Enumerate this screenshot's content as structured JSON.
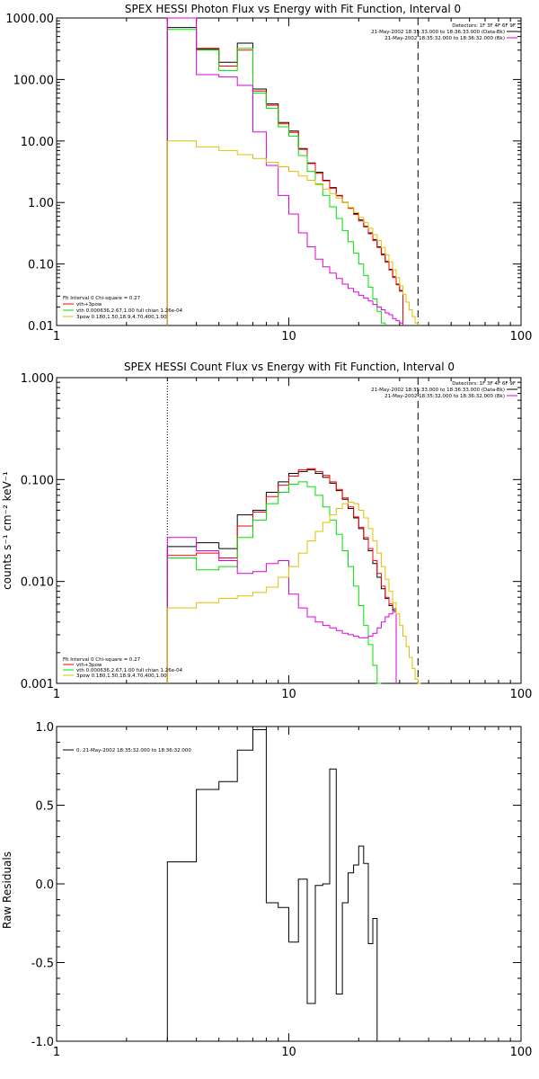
{
  "colors": {
    "black": "#000000",
    "red": "#ff0000",
    "green": "#00e000",
    "magenta": "#e000e0",
    "yellow": "#e0c000"
  },
  "chart_data": [
    {
      "type": "line",
      "title": "SPEX HESSI Photon Flux vs Energy with Fit Function, Interval 0",
      "xlabel": "",
      "ylabel": "",
      "xscale": "log",
      "yscale": "log",
      "xlim": [
        1,
        100
      ],
      "ylim": [
        0.01,
        1000
      ],
      "xticks": [
        {
          "v": 1,
          "label": "1"
        },
        {
          "v": 10,
          "label": "10"
        },
        {
          "v": 100,
          "label": "100"
        }
      ],
      "yticks": [
        {
          "v": 1000,
          "label": "1000.00"
        },
        {
          "v": 100,
          "label": "100.00"
        },
        {
          "v": 10,
          "label": "10.00"
        },
        {
          "v": 1,
          "label": "1.00"
        },
        {
          "v": 0.1,
          "label": "0.10"
        },
        {
          "v": 0.01,
          "label": "0.01"
        }
      ],
      "edges": [
        3,
        4,
        5,
        6,
        7,
        8,
        9,
        10,
        11,
        12,
        13,
        14,
        15,
        16,
        17,
        18,
        19,
        20,
        21,
        22,
        23,
        24,
        25,
        26,
        27,
        28,
        29,
        30,
        31,
        32,
        33,
        34,
        35,
        36,
        37,
        38,
        39,
        40,
        41,
        42,
        43,
        44,
        45
      ],
      "vlines": [
        {
          "x": 3,
          "style": "dotted"
        },
        {
          "x": 36,
          "style": "dashed"
        }
      ],
      "series": [
        {
          "color": "black",
          "values": [
            700,
            310,
            190,
            390,
            70,
            40,
            20,
            14.5,
            7.5,
            4.4,
            3.1,
            2.3,
            1.75,
            1.3,
            1.0,
            0.82,
            0.66,
            0.52,
            0.41,
            0.32,
            0.25,
            0.19,
            0.145,
            0.11,
            0.082,
            0.062,
            0.047,
            0.037,
            null,
            null,
            null,
            null,
            null,
            null,
            null,
            null,
            null,
            null,
            null,
            null,
            null,
            null
          ]
        },
        {
          "color": "red",
          "values": [
            1000,
            320,
            165,
            300,
            65,
            38,
            19,
            13.8,
            7.3,
            4.3,
            3.0,
            2.25,
            1.7,
            1.28,
            0.99,
            0.8,
            0.64,
            0.5,
            0.4,
            0.31,
            0.24,
            0.185,
            0.14,
            0.107,
            0.08,
            0.06,
            0.046,
            0.036,
            null,
            null,
            null,
            null,
            null,
            null,
            null,
            null,
            null,
            null,
            null,
            null,
            null,
            null
          ]
        },
        {
          "color": "green",
          "values": [
            650,
            300,
            140,
            320,
            60,
            34,
            17,
            12,
            5.8,
            3.2,
            2.0,
            1.3,
            0.85,
            0.55,
            0.35,
            0.23,
            0.15,
            0.1,
            0.065,
            0.042,
            0.027,
            0.017,
            0.011,
            null,
            null,
            null,
            null,
            null,
            null,
            null,
            null,
            null,
            null,
            null,
            null,
            null,
            null,
            null,
            null,
            null,
            null,
            null
          ]
        },
        {
          "color": "magenta",
          "values": [
            1000,
            120,
            110,
            80,
            14,
            4.0,
            1.3,
            0.65,
            0.32,
            0.19,
            0.12,
            0.09,
            0.071,
            0.058,
            0.047,
            0.04,
            0.035,
            0.031,
            0.028,
            0.025,
            0.022,
            0.02,
            0.018,
            0.016,
            0.015,
            0.013,
            0.012,
            0.011,
            null,
            null,
            null,
            null,
            null,
            null,
            null,
            null,
            null,
            null,
            null,
            null,
            null,
            null
          ]
        },
        {
          "color": "yellow",
          "values": [
            10,
            8,
            7,
            6,
            5.2,
            4.5,
            3.8,
            3.2,
            2.7,
            2.3,
            1.95,
            1.65,
            1.4,
            1.18,
            0.99,
            0.83,
            0.69,
            0.57,
            0.47,
            0.38,
            0.3,
            0.24,
            0.185,
            0.142,
            0.108,
            0.081,
            0.06,
            0.044,
            0.032,
            0.024,
            0.018,
            0.014,
            0.011,
            null,
            null,
            null,
            null,
            null,
            null,
            null,
            null,
            null
          ]
        }
      ],
      "legend_topright": [
        "Detectors: 1F 3F 4F 6F 9F",
        "21-May-2002 18:35:33.000 to 18:36:33.000 (Data-Bk)",
        "21-May-2002 18:35:32.000 to 18:36:32.000 (Bk)"
      ],
      "legend_topright_colors": [
        "black",
        "black",
        "magenta"
      ],
      "legend_bottomleft": [
        "Fit Interval 0   Chi-square = 0.27",
        "vth+3pow",
        "vth 0.000636,2.67,1.00  full chian 1.26e-04",
        "3pow 0.180,1.50,18.9,4.70,400,1.00"
      ],
      "legend_bottomleft_colors": [
        "black",
        "red",
        "green",
        "yellow"
      ]
    },
    {
      "type": "line",
      "title": "SPEX HESSI Count Flux vs Energy with Fit Function, Interval 0",
      "xlabel": "",
      "ylabel": "counts s⁻¹ cm⁻² keV⁻¹",
      "xscale": "log",
      "yscale": "log",
      "xlim": [
        1,
        100
      ],
      "ylim": [
        0.001,
        1.0
      ],
      "xticks": [
        {
          "v": 1,
          "label": "1"
        },
        {
          "v": 10,
          "label": "10"
        },
        {
          "v": 100,
          "label": "100"
        }
      ],
      "yticks": [
        {
          "v": 1,
          "label": "1.000"
        },
        {
          "v": 0.1,
          "label": "0.100"
        },
        {
          "v": 0.01,
          "label": "0.010"
        },
        {
          "v": 0.001,
          "label": "0.001"
        }
      ],
      "edges": [
        3,
        4,
        5,
        6,
        7,
        8,
        9,
        10,
        11,
        12,
        13,
        14,
        15,
        16,
        17,
        18,
        19,
        20,
        21,
        22,
        23,
        24,
        25,
        26,
        27,
        28,
        29,
        30,
        31,
        32,
        33,
        34,
        35,
        36,
        37,
        38,
        39,
        40,
        41,
        42,
        43,
        44,
        45,
        46,
        47,
        48,
        49,
        50,
        51,
        52,
        53,
        54,
        55
      ],
      "vlines": [
        {
          "x": 3,
          "style": "dotted"
        },
        {
          "x": 36,
          "style": "dashed"
        }
      ],
      "series": [
        {
          "color": "black",
          "values": [
            0.022,
            0.024,
            0.021,
            0.045,
            0.05,
            0.075,
            0.095,
            0.115,
            0.12,
            0.125,
            0.115,
            0.105,
            0.092,
            0.078,
            0.064,
            0.052,
            0.042,
            0.033,
            0.026,
            0.02,
            0.015,
            0.011,
            0.0085,
            0.0068,
            0.0058,
            0.0052,
            null,
            null,
            null,
            null,
            null,
            null,
            null,
            null,
            null,
            null,
            null,
            null,
            null,
            null,
            null,
            null,
            null,
            null,
            null,
            null,
            null,
            null,
            null,
            null,
            null,
            null
          ]
        },
        {
          "color": "red",
          "values": [
            0.018,
            0.019,
            0.017,
            0.035,
            0.048,
            0.068,
            0.088,
            0.108,
            0.125,
            0.128,
            0.12,
            0.11,
            0.095,
            0.08,
            0.066,
            0.054,
            0.043,
            0.034,
            0.027,
            0.021,
            0.016,
            0.012,
            0.009,
            0.007,
            0.006,
            0.0054,
            null,
            null,
            null,
            null,
            null,
            null,
            null,
            null,
            null,
            null,
            null,
            null,
            null,
            null,
            null,
            null,
            null,
            null,
            null,
            null,
            null,
            null,
            null,
            null,
            null,
            null
          ]
        },
        {
          "color": "green",
          "values": [
            0.017,
            0.013,
            0.014,
            0.027,
            0.04,
            0.058,
            0.075,
            0.09,
            0.095,
            0.085,
            0.07,
            0.054,
            0.04,
            0.029,
            0.02,
            0.014,
            0.009,
            0.0058,
            0.0037,
            0.0024,
            0.0015,
            0.001,
            null,
            null,
            null,
            null,
            null,
            null,
            null,
            null,
            null,
            null,
            null,
            null,
            null,
            null,
            null,
            null,
            null,
            null,
            null,
            null,
            null,
            null,
            null,
            null,
            null,
            null,
            null,
            null,
            null,
            null
          ]
        },
        {
          "color": "magenta",
          "values": [
            0.027,
            0.02,
            0.016,
            0.012,
            0.0125,
            0.015,
            0.016,
            0.0075,
            0.0055,
            0.0045,
            0.004,
            0.0037,
            0.0035,
            0.0033,
            0.0031,
            0.003,
            0.0029,
            0.0028,
            0.0028,
            0.0029,
            0.0031,
            0.0035,
            0.004,
            0.0045,
            0.0048,
            0.005,
            null,
            null,
            null,
            null,
            null,
            null,
            null,
            null,
            null,
            null,
            null,
            null,
            null,
            null,
            null,
            null,
            null,
            null,
            null,
            null,
            null,
            null,
            null,
            null,
            null,
            null
          ]
        },
        {
          "color": "yellow",
          "values": [
            0.0055,
            0.0062,
            0.0068,
            0.0072,
            0.0078,
            0.0088,
            0.011,
            0.014,
            0.019,
            0.025,
            0.031,
            0.038,
            0.045,
            0.052,
            0.058,
            0.06,
            0.058,
            0.05,
            0.042,
            0.033,
            0.025,
            0.019,
            0.014,
            0.0105,
            0.008,
            0.0062,
            0.0048,
            0.0037,
            0.0029,
            0.0023,
            0.0018,
            0.0014,
            0.0011,
            0.0009,
            null,
            null,
            null,
            null,
            null,
            null,
            null,
            null,
            null,
            null,
            null,
            null,
            null,
            null,
            null,
            null,
            null,
            null
          ]
        }
      ],
      "legend_topright": [
        "Detectors: 1F 3F 4F 6F 9F",
        "21-May-2002 18:35:33.000 to 18:36:33.000 (Data-Bk)",
        "21-May-2002 18:35:32.000 to 18:36:32.000 (Bk)"
      ],
      "legend_topright_colors": [
        "black",
        "black",
        "magenta"
      ],
      "legend_bottomleft": [
        "Fit Interval 0   Chi-square = 0.27",
        "vth+3pow",
        "vth 0.000636,2.67,1.00  full chian 1.26e-04",
        "3pow 0.180,1.50,18.9,4.70,400,1.00"
      ],
      "legend_bottomleft_colors": [
        "black",
        "red",
        "green",
        "yellow"
      ]
    },
    {
      "type": "line",
      "title": "",
      "xlabel": "",
      "ylabel": "Raw Residuals",
      "xscale": "log",
      "yscale": "linear",
      "xlim": [
        1,
        100
      ],
      "ylim": [
        -1.0,
        1.0
      ],
      "xticks": [
        {
          "v": 1,
          "label": "1"
        },
        {
          "v": 10,
          "label": "10"
        },
        {
          "v": 100,
          "label": "100"
        }
      ],
      "yticks": [
        {
          "v": 1,
          "label": "1.0"
        },
        {
          "v": 0.5,
          "label": "0.5"
        },
        {
          "v": 0,
          "label": "0.0"
        },
        {
          "v": -0.5,
          "label": "-0.5"
        },
        {
          "v": -1,
          "label": "-1.0"
        }
      ],
      "edges": [
        3,
        4,
        5,
        6,
        7,
        8,
        9,
        10,
        11,
        12,
        13,
        14,
        15,
        16,
        17,
        18,
        19,
        20,
        21,
        22,
        23,
        24,
        25,
        26,
        27,
        28,
        29,
        30,
        31,
        32,
        33,
        34,
        35,
        36,
        37,
        38,
        39
      ],
      "series": [
        {
          "color": "black",
          "values": [
            0.14,
            0.6,
            0.65,
            0.85,
            0.98,
            -0.12,
            -0.15,
            -0.37,
            0.03,
            -0.76,
            -0.01,
            0.0,
            0.73,
            -0.7,
            -0.12,
            0.07,
            0.12,
            0.24,
            0.13,
            -0.38,
            -0.22,
            null,
            null,
            null,
            null,
            null,
            null,
            null,
            null,
            null,
            null,
            null,
            null,
            null,
            null,
            null
          ]
        }
      ],
      "legend_topleft": [
        "0. 21-May-2002 18:35:32.000 to 18:36:32.000"
      ],
      "legend_topleft_colors": [
        "black"
      ]
    }
  ]
}
